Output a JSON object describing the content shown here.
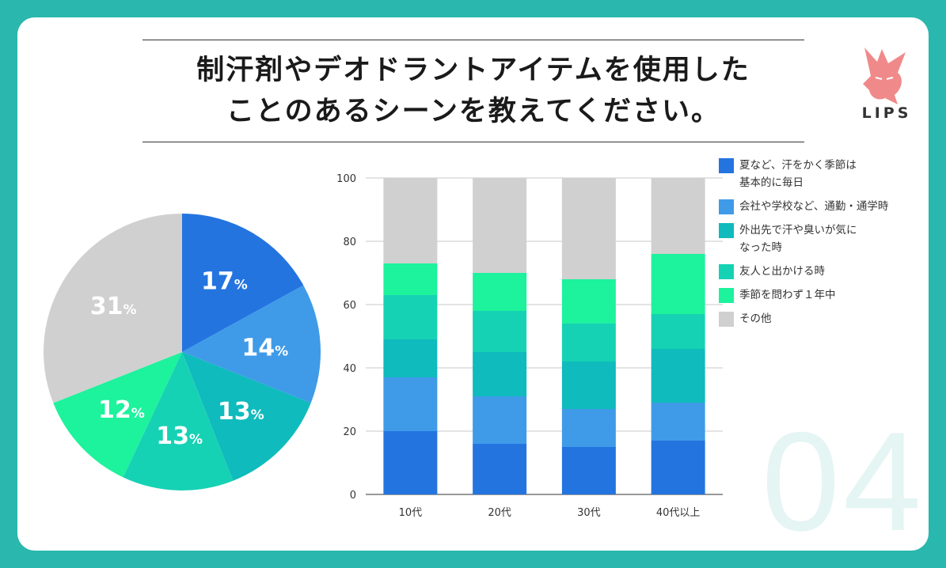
{
  "title": {
    "line1": "制汗剤やデオドラントアイテムを使用した",
    "line2": "ことのあるシーンを教えてください。"
  },
  "brand": {
    "logo_text": "LIPS",
    "logo_color": "#f08a8a"
  },
  "page_number": "04",
  "colors": {
    "background": "#2ab7ad",
    "series": [
      "#2474e0",
      "#3f9be8",
      "#0fbbbc",
      "#16d2b4",
      "#1df29d",
      "#d0d0d0"
    ]
  },
  "chart_data": [
    {
      "type": "pie",
      "slices": [
        {
          "label": "17",
          "value": 17
        },
        {
          "label": "14",
          "value": 14
        },
        {
          "label": "13",
          "value": 13
        },
        {
          "label": "13",
          "value": 13
        },
        {
          "label": "12",
          "value": 12
        },
        {
          "label": "31",
          "value": 31
        }
      ],
      "unit": "%"
    },
    {
      "type": "bar",
      "stacked": true,
      "categories": [
        "10代",
        "20代",
        "30代",
        "40代以上"
      ],
      "series": [
        {
          "name": "夏など、汗をかく季節は\n基本的に毎日",
          "values": [
            20,
            16,
            15,
            17
          ]
        },
        {
          "name": "会社や学校など、通勤・通学時",
          "values": [
            17,
            15,
            12,
            12
          ]
        },
        {
          "name": "外出先で汗や臭いが気に\nなった時",
          "values": [
            12,
            14,
            15,
            17
          ]
        },
        {
          "name": "友人と出かける時",
          "values": [
            14,
            13,
            12,
            11
          ]
        },
        {
          "name": "季節を問わず１年中",
          "values": [
            10,
            12,
            14,
            19
          ]
        },
        {
          "name": "その他",
          "values": [
            27,
            30,
            32,
            24
          ]
        }
      ],
      "ylim": [
        0,
        100
      ],
      "yticks": [
        "0",
        "20",
        "40",
        "60",
        "80",
        "100"
      ],
      "grid": true,
      "legend_position": "right"
    }
  ]
}
